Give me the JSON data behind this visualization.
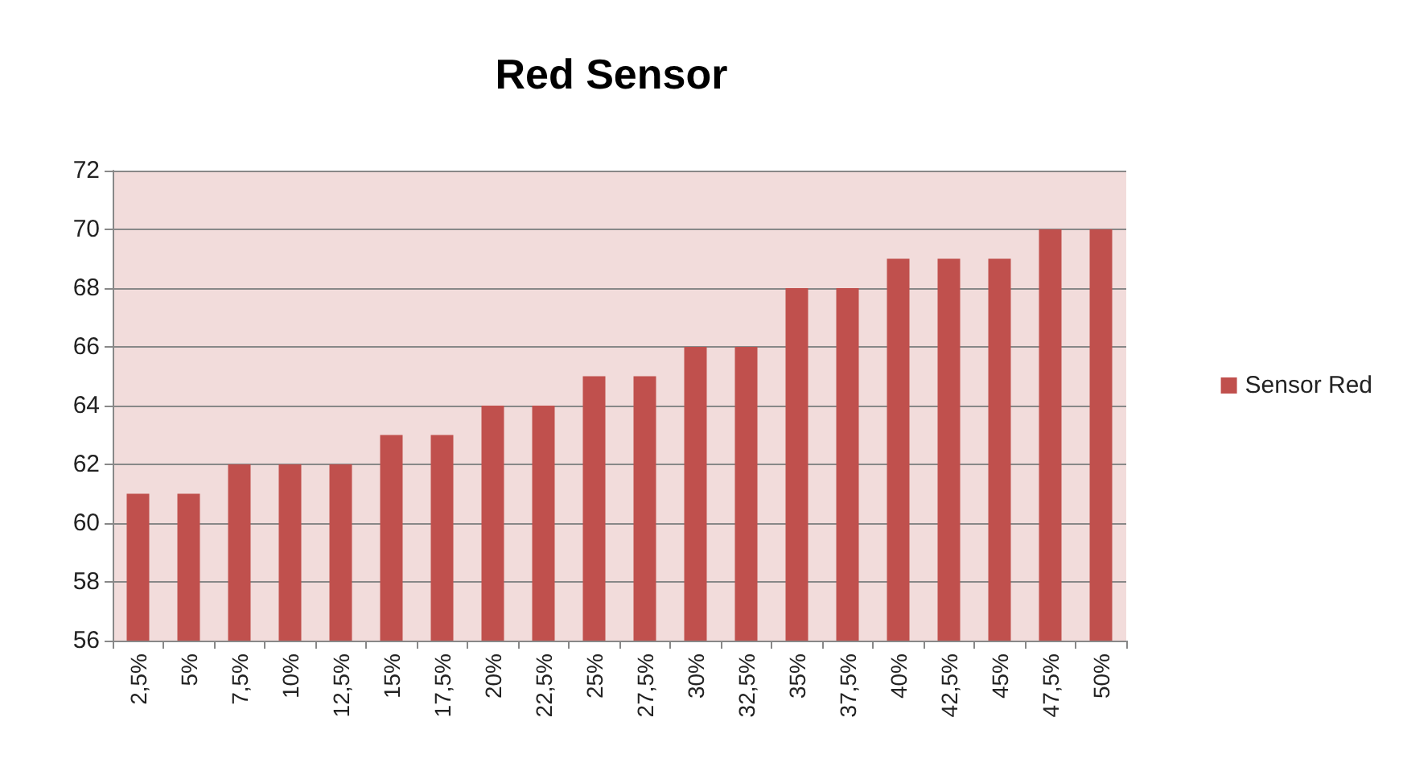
{
  "chart_data": {
    "type": "bar",
    "title": "Red Sensor",
    "categories": [
      "2,5%",
      "5%",
      "7,5%",
      "10%",
      "12,5%",
      "15%",
      "17,5%",
      "20%",
      "22,5%",
      "25%",
      "27,5%",
      "30%",
      "32,5%",
      "35%",
      "37,5%",
      "40%",
      "42,5%",
      "45%",
      "47,5%",
      "50%"
    ],
    "series": [
      {
        "name": "Sensor Red",
        "color": "#c0504d",
        "values": [
          61,
          61,
          62,
          62,
          62,
          63,
          63,
          64,
          64,
          65,
          65,
          66,
          66,
          68,
          68,
          69,
          69,
          69,
          70,
          70
        ]
      }
    ],
    "ylim": [
      56,
      72
    ],
    "yticks": [
      56,
      58,
      60,
      62,
      64,
      66,
      68,
      70,
      72
    ],
    "grid": "y",
    "legend": "right"
  }
}
